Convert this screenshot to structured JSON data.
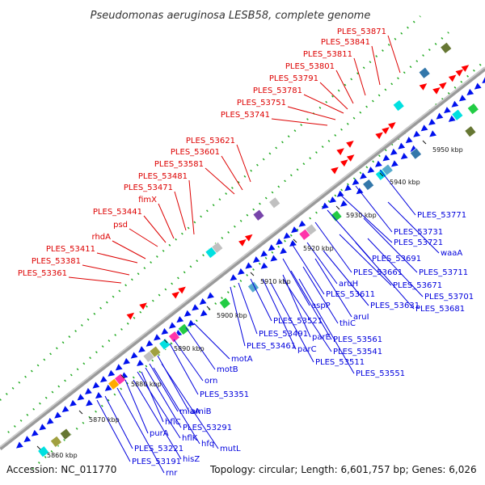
{
  "title": "Pseudomonas aeruginosa LESB58, complete genome",
  "footer": {
    "accession": "Accession: NC_011770",
    "summary": "Topology: circular; Length: 6,601,757 bp; Genes: 6,026"
  },
  "colors": {
    "forward_label": "#dd0000",
    "reverse_label": "#0000dd",
    "forward_gene": "#ff0000",
    "reverse_gene": "#0011ee",
    "backbone": "#888888",
    "dots": "#22aa22"
  },
  "scale_ticks": [
    "5860 kbp",
    "5870 kbp",
    "5880 kbp",
    "5890 kbp",
    "5900 kbp",
    "5910 kbp",
    "5920 kbp",
    "5930 kbp",
    "5940 kbp",
    "5950 kbp"
  ],
  "forward_labels": [
    "PLES_53871",
    "PLES_53841",
    "PLES_53811",
    "PLES_53801",
    "PLES_53791",
    "PLES_53781",
    "PLES_53751",
    "PLES_53741",
    "PLES_53621",
    "PLES_53601",
    "PLES_53581",
    "PLES_53481",
    "PLES_53471",
    "fimX",
    "PLES_53441",
    "psd",
    "rhdA",
    "PLES_53411",
    "PLES_53381",
    "PLES_53361"
  ],
  "reverse_labels": [
    "PLES_53771",
    "PLES_53731",
    "PLES_53721",
    "waaA",
    "PLES_53691",
    "PLES_53711",
    "PLES_53661",
    "PLES_53671",
    "aruH",
    "PLES_53701",
    "PLES_53611",
    "PLES_53681",
    "aspP",
    "PLES_53631",
    "aruI",
    "thiC",
    "PLES_53521",
    "PLES_53491",
    "parE",
    "PLES_53561",
    "PLES_53461",
    "parC",
    "PLES_53541",
    "PLES_53511",
    "PLES_53551",
    "motA",
    "motB",
    "orn",
    "PLES_53351",
    "amiB",
    "miaA",
    "hflC",
    "PLES_53291",
    "purA",
    "hflK",
    "hfq",
    "mutL",
    "PLES_53221",
    "hisZ",
    "PLES_53191",
    "rnr"
  ]
}
